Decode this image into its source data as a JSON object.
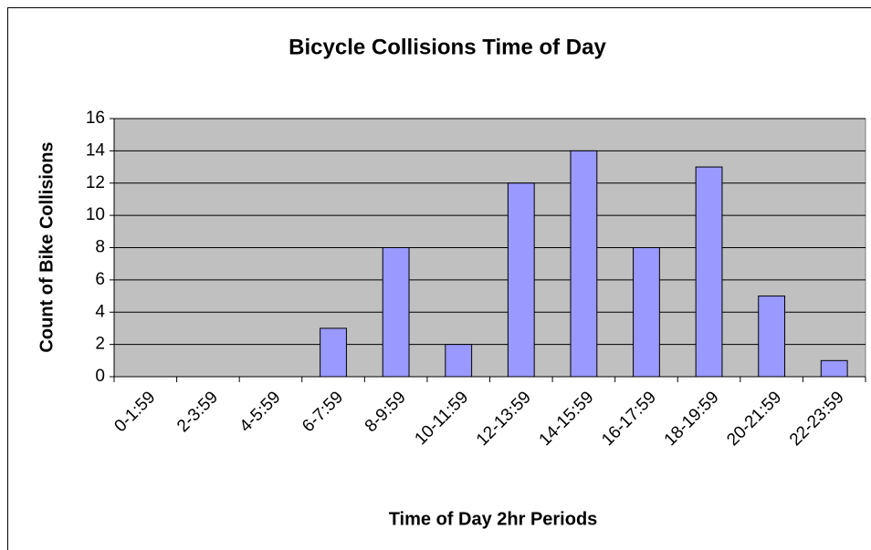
{
  "chart_data": {
    "type": "bar",
    "title": "Bicycle Collisions Time of Day",
    "x_label": "Time of Day 2hr Periods",
    "y_label": "Count of Bike Collisions",
    "categories": [
      "0-1:59",
      "2-3:59",
      "4-5:59",
      "6-7:59",
      "8-9:59",
      "10-11:59",
      "12-13:59",
      "14-15:59",
      "16-17:59",
      "18-19:59",
      "20-21:59",
      "22-23:59"
    ],
    "values": [
      0,
      0,
      0,
      3,
      8,
      2,
      12,
      14,
      8,
      13,
      5,
      1
    ],
    "color": "#9999ff",
    "plot_background": "#c0c0c0",
    "ylim": [
      0,
      16
    ],
    "yticks": [
      0,
      2,
      4,
      6,
      8,
      10,
      12,
      14,
      16
    ],
    "grid": true
  }
}
